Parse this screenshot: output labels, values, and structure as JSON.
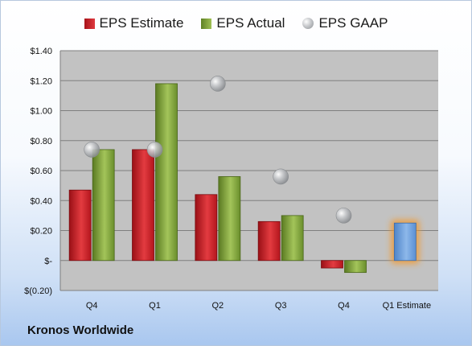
{
  "chart_data": {
    "type": "bar",
    "categories": [
      "Q4",
      "Q1",
      "Q2",
      "Q3",
      "Q4",
      "Q1 Estimate"
    ],
    "series": [
      {
        "name": "EPS Estimate",
        "type": "bar",
        "color": "#c8181f",
        "values": [
          0.47,
          0.74,
          0.44,
          0.26,
          -0.05,
          null
        ]
      },
      {
        "name": "EPS Actual",
        "type": "bar",
        "color": "#7ba03a",
        "values": [
          0.74,
          1.18,
          0.56,
          0.3,
          -0.08,
          null
        ]
      },
      {
        "name": "EPS GAAP",
        "type": "scatter",
        "color": "#a9abae",
        "values": [
          0.74,
          0.74,
          1.18,
          0.56,
          0.3,
          null
        ]
      }
    ],
    "forecast": {
      "category": "Q1 Estimate",
      "value": 0.25,
      "color": "#6fa0dc",
      "highlight": "#f39a2e"
    },
    "yticks": [
      -0.2,
      0,
      0.2,
      0.4,
      0.6,
      0.8,
      1.0,
      1.2,
      1.4
    ],
    "ytick_labels": [
      "$(0.20)",
      "$-",
      "$0.20",
      "$0.40",
      "$0.60",
      "$0.80",
      "$1.00",
      "$1.20",
      "$1.40"
    ],
    "ylim": [
      -0.2,
      1.4
    ],
    "grid": true,
    "legend_position": "top"
  },
  "footer": {
    "company": "Kronos Worldwide"
  }
}
